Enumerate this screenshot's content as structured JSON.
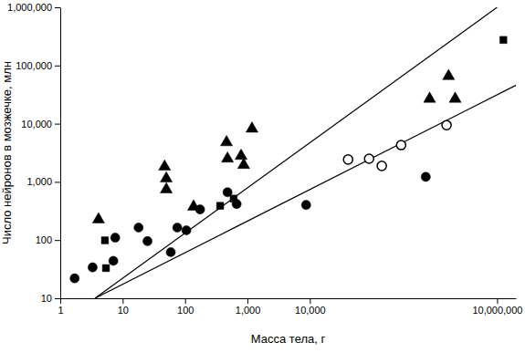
{
  "chart_data": {
    "type": "scatter",
    "x_label": "Масса тела, г",
    "y_label": "Число нейронов в мозжечке, млн",
    "log": true,
    "grid": false,
    "xlim": [
      1,
      20000000
    ],
    "ylim": [
      10,
      1000000
    ],
    "xticks": [
      1,
      10,
      100,
      {
        "value": 1000,
        "label": "1,000"
      },
      {
        "value": 10000,
        "label": "10,000"
      },
      {
        "value": 10000000,
        "label": "10,000,000"
      }
    ],
    "yticks": [
      10,
      100,
      {
        "value": 1000,
        "label": "1,000"
      },
      {
        "value": 10000,
        "label": "10,000"
      },
      {
        "value": 100000,
        "label": "100,000"
      },
      {
        "value": 1000000,
        "label": "1,000,000"
      }
    ],
    "series": [
      {
        "type": "line",
        "color": "#000000",
        "line_style": "solid",
        "x": [
          3.6,
          10000000
        ],
        "values": [
          10,
          1000000
        ]
      },
      {
        "type": "line",
        "color": "#000000",
        "line_style": "solid",
        "x": [
          3.6,
          32000000
        ],
        "values": [
          10,
          58900
        ]
      },
      {
        "type": "scatter",
        "marker": "circle",
        "color": "#000000",
        "x": [
          1.7,
          3.3,
          7.1,
          7.6,
          18,
          25,
          59,
          75,
          105,
          174,
          479,
          670,
          8700,
          720000
        ],
        "values": [
          22,
          34,
          44,
          110,
          164,
          96,
          62,
          164,
          147,
          336,
          664,
          417,
          402,
          1220
        ]
      },
      {
        "type": "scatter",
        "marker": "open-circle",
        "color": "#000000",
        "x": [
          41000,
          89000,
          142000,
          290000,
          1550000
        ],
        "values": [
          2420,
          2500,
          1880,
          4290,
          9440
        ]
      },
      {
        "type": "scatter",
        "marker": "triangle",
        "color": "#000000",
        "x": [
          4.1,
          47,
          50,
          50,
          137,
          462,
          479,
          790,
          870,
          1180,
          830000,
          1670000,
          2130000
        ],
        "values": [
          226,
          1820,
          1140,
          740,
          374,
          4780,
          2500,
          2790,
          1950,
          8180,
          26700,
          65500,
          26700
        ]
      },
      {
        "type": "scatter",
        "marker": "square",
        "color": "#000000",
        "x": [
          5.2,
          5.4,
          365,
          600,
          12600000
        ],
        "values": [
          99,
          33,
          388,
          516,
          275000
        ]
      }
    ]
  }
}
